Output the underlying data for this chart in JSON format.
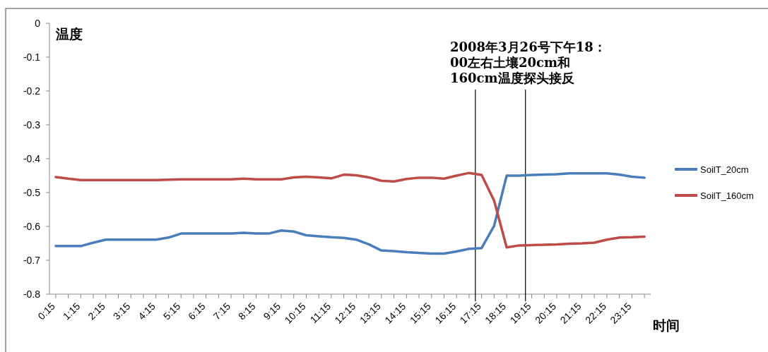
{
  "chart_data": {
    "type": "line",
    "xlabel": "时间",
    "ylabel": "温度",
    "x": [
      0.25,
      0.75,
      1.25,
      1.75,
      2.25,
      2.75,
      3.25,
      3.75,
      4.25,
      4.75,
      5.25,
      5.75,
      6.25,
      6.75,
      7.25,
      7.75,
      8.25,
      8.75,
      9.25,
      9.75,
      10.25,
      10.75,
      11.25,
      11.75,
      12.25,
      12.75,
      13.25,
      13.75,
      14.25,
      14.75,
      15.25,
      15.75,
      16.25,
      16.75,
      17.25,
      17.75,
      18.25,
      18.75,
      19.25,
      19.75,
      20.25,
      20.75,
      21.25,
      21.75,
      22.25,
      22.75,
      23.25,
      23.75
    ],
    "series": [
      {
        "name": "SoilT_20cm",
        "color": "#4a7ebb",
        "values": [
          -0.658,
          -0.658,
          -0.658,
          -0.648,
          -0.639,
          -0.639,
          -0.639,
          -0.639,
          -0.639,
          -0.633,
          -0.621,
          -0.621,
          -0.621,
          -0.621,
          -0.621,
          -0.619,
          -0.621,
          -0.621,
          -0.612,
          -0.615,
          -0.626,
          -0.629,
          -0.632,
          -0.634,
          -0.639,
          -0.653,
          -0.671,
          -0.673,
          -0.676,
          -0.678,
          -0.68,
          -0.68,
          -0.674,
          -0.666,
          -0.664,
          -0.598,
          -0.45,
          -0.45,
          -0.448,
          -0.447,
          -0.446,
          -0.443,
          -0.443,
          -0.443,
          -0.443,
          -0.447,
          -0.453,
          -0.456
        ]
      },
      {
        "name": "SoilT_160cm",
        "color": "#be4b48",
        "values": [
          -0.454,
          -0.459,
          -0.463,
          -0.463,
          -0.463,
          -0.463,
          -0.463,
          -0.463,
          -0.463,
          -0.462,
          -0.461,
          -0.461,
          -0.461,
          -0.461,
          -0.461,
          -0.459,
          -0.461,
          -0.461,
          -0.461,
          -0.455,
          -0.453,
          -0.455,
          -0.458,
          -0.447,
          -0.449,
          -0.455,
          -0.465,
          -0.467,
          -0.46,
          -0.456,
          -0.456,
          -0.459,
          -0.45,
          -0.442,
          -0.448,
          -0.524,
          -0.662,
          -0.656,
          -0.655,
          -0.654,
          -0.653,
          -0.651,
          -0.65,
          -0.648,
          -0.639,
          -0.633,
          -0.632,
          -0.63
        ]
      }
    ],
    "xlim": [
      0,
      24
    ],
    "ylim": [
      -0.8,
      0
    ],
    "xticks": [
      {
        "value": 0.25,
        "label": "0:15"
      },
      {
        "value": 0.75,
        "label": null
      },
      {
        "value": 1.25,
        "label": "1:15"
      },
      {
        "value": 1.75,
        "label": null
      },
      {
        "value": 2.25,
        "label": "2:15"
      },
      {
        "value": 2.75,
        "label": null
      },
      {
        "value": 3.25,
        "label": "3:15"
      },
      {
        "value": 3.75,
        "label": null
      },
      {
        "value": 4.25,
        "label": "4:15"
      },
      {
        "value": 4.75,
        "label": null
      },
      {
        "value": 5.25,
        "label": "5:15"
      },
      {
        "value": 5.75,
        "label": null
      },
      {
        "value": 6.25,
        "label": "6:15"
      },
      {
        "value": 6.75,
        "label": null
      },
      {
        "value": 7.25,
        "label": "7:15"
      },
      {
        "value": 7.75,
        "label": null
      },
      {
        "value": 8.25,
        "label": "8:15"
      },
      {
        "value": 8.75,
        "label": null
      },
      {
        "value": 9.25,
        "label": "9:15"
      },
      {
        "value": 9.75,
        "label": null
      },
      {
        "value": 10.25,
        "label": "10:15"
      },
      {
        "value": 10.75,
        "label": null
      },
      {
        "value": 11.25,
        "label": "11:15"
      },
      {
        "value": 11.75,
        "label": null
      },
      {
        "value": 12.25,
        "label": "12:15"
      },
      {
        "value": 12.75,
        "label": null
      },
      {
        "value": 13.25,
        "label": "13:15"
      },
      {
        "value": 13.75,
        "label": null
      },
      {
        "value": 14.25,
        "label": "14:15"
      },
      {
        "value": 14.75,
        "label": null
      },
      {
        "value": 15.25,
        "label": "15:15"
      },
      {
        "value": 15.75,
        "label": null
      },
      {
        "value": 16.25,
        "label": "16:15"
      },
      {
        "value": 16.75,
        "label": null
      },
      {
        "value": 17.25,
        "label": "17:15"
      },
      {
        "value": 17.75,
        "label": null
      },
      {
        "value": 18.25,
        "label": "18:15"
      },
      {
        "value": 18.75,
        "label": null
      },
      {
        "value": 19.25,
        "label": "19:15"
      },
      {
        "value": 19.75,
        "label": null
      },
      {
        "value": 20.25,
        "label": "20:15"
      },
      {
        "value": 20.75,
        "label": null
      },
      {
        "value": 21.25,
        "label": "21:15"
      },
      {
        "value": 21.75,
        "label": null
      },
      {
        "value": 22.25,
        "label": "22:15"
      },
      {
        "value": 22.75,
        "label": null
      },
      {
        "value": 23.25,
        "label": "23:15"
      },
      {
        "value": 23.75,
        "label": null
      }
    ],
    "yticks": [
      0,
      -0.1,
      -0.2,
      -0.3,
      -0.4,
      -0.5,
      -0.6,
      -0.7,
      -0.8
    ],
    "ref_lines": [
      {
        "axis": "x",
        "value": 17,
        "color": "#000000"
      },
      {
        "axis": "x",
        "value": 19,
        "color": "#000000"
      }
    ],
    "annotations": [
      "2008年3月26号下午18：00左右土壤20cm和160cm温度探头接反"
    ],
    "legend": "right",
    "marker": "none",
    "line_style": "solid"
  }
}
